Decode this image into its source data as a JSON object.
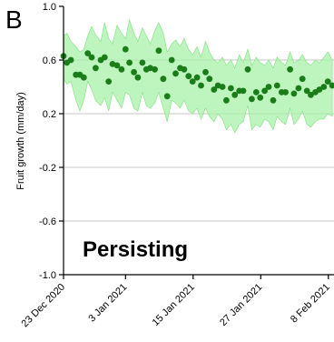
{
  "chart_data": {
    "type": "scatter",
    "panel_label": "B",
    "title": "",
    "xlabel": "",
    "ylabel": "Fruit growth (mm/day)",
    "annotation": "Persisting",
    "x_ticks": [
      "23 Dec 2020",
      "3 Jan 2021",
      "15 Jan 2021",
      "27 Jan 2021",
      "8 Feb 2021"
    ],
    "x_tick_days": [
      0,
      11,
      23,
      35,
      47
    ],
    "x_range_days": [
      0,
      48
    ],
    "ylim": [
      -1.0,
      1.0
    ],
    "y_ticks": [
      1.0,
      0.6,
      0.2,
      -0.2,
      -0.6,
      -1.0
    ],
    "y_tick_labels": [
      "1.0",
      "0.6",
      "0.2",
      "-0.2",
      "-0.6",
      "-1.0"
    ],
    "grid": "horizontal",
    "colors": {
      "points": "#1a7d1a",
      "band": "#a8f0a8",
      "band_edge": "#7fe27f",
      "grid": "#d9d9d9",
      "zero_line": "#c8c8c8",
      "axis": "#000000"
    },
    "x": [
      0,
      0.6,
      1.3,
      2.2,
      2.9,
      3.6,
      4.3,
      5.0,
      5.7,
      6.6,
      7.3,
      8.0,
      8.7,
      9.5,
      10.3,
      11.0,
      11.7,
      12.5,
      13.2,
      14.0,
      14.7,
      15.4,
      16.2,
      16.9,
      17.7,
      18.4,
      19.2,
      19.9,
      20.7,
      21.4,
      22.2,
      22.9,
      23.7,
      24.4,
      25.2,
      25.9,
      26.7,
      27.4,
      28.2,
      28.9,
      29.7,
      30.4,
      31.2,
      31.9,
      32.7,
      33.4,
      34.2,
      34.9,
      35.7,
      36.4,
      37.2,
      37.9,
      38.7,
      39.4,
      40.2,
      40.9,
      41.7,
      42.4,
      43.2,
      43.9,
      44.7,
      45.4,
      46.2,
      46.9,
      47.7
    ],
    "y": [
      0.63,
      0.58,
      0.6,
      0.49,
      0.49,
      0.47,
      0.65,
      0.62,
      0.54,
      0.6,
      0.62,
      0.44,
      0.57,
      0.56,
      0.53,
      0.68,
      0.58,
      0.51,
      0.47,
      0.58,
      0.53,
      0.54,
      0.53,
      0.67,
      0.46,
      0.33,
      0.6,
      0.5,
      0.54,
      0.53,
      0.48,
      0.44,
      0.47,
      0.41,
      0.51,
      0.46,
      0.38,
      0.41,
      0.4,
      0.3,
      0.39,
      0.34,
      0.37,
      0.37,
      0.53,
      0.31,
      0.36,
      0.32,
      0.37,
      0.4,
      0.3,
      0.41,
      0.36,
      0.36,
      0.53,
      0.35,
      0.39,
      0.46,
      0.37,
      0.34,
      0.36,
      0.38,
      0.4,
      0.44,
      0.41
    ],
    "band_upper": [
      0.78,
      0.8,
      0.74,
      0.7,
      0.66,
      0.68,
      0.78,
      0.85,
      0.79,
      0.74,
      0.88,
      0.76,
      0.72,
      0.86,
      0.8,
      0.76,
      0.9,
      0.8,
      0.74,
      0.84,
      0.78,
      0.72,
      0.82,
      0.88,
      0.8,
      0.66,
      0.72,
      0.75,
      0.7,
      0.76,
      0.68,
      0.64,
      0.7,
      0.62,
      0.74,
      0.66,
      0.6,
      0.58,
      0.62,
      0.56,
      0.6,
      0.54,
      0.64,
      0.58,
      0.68,
      0.56,
      0.62,
      0.58,
      0.56,
      0.6,
      0.54,
      0.62,
      0.58,
      0.56,
      0.66,
      0.58,
      0.6,
      0.64,
      0.58,
      0.56,
      0.6,
      0.58,
      0.62,
      0.66,
      0.6
    ],
    "band_lower": [
      0.46,
      0.42,
      0.44,
      0.3,
      0.22,
      0.3,
      0.44,
      0.38,
      0.3,
      0.26,
      0.32,
      0.22,
      0.36,
      0.3,
      0.24,
      0.36,
      0.34,
      0.24,
      0.22,
      0.36,
      0.26,
      0.24,
      0.28,
      0.36,
      0.24,
      0.14,
      0.3,
      0.28,
      0.24,
      0.3,
      0.22,
      0.2,
      0.24,
      0.16,
      0.24,
      0.18,
      0.14,
      0.2,
      0.16,
      0.08,
      0.12,
      0.06,
      0.12,
      0.14,
      0.26,
      0.08,
      0.12,
      0.1,
      0.16,
      0.14,
      0.08,
      0.18,
      0.14,
      0.12,
      0.24,
      0.12,
      0.16,
      0.22,
      0.12,
      0.1,
      0.14,
      0.16,
      0.16,
      0.2,
      0.18
    ]
  }
}
